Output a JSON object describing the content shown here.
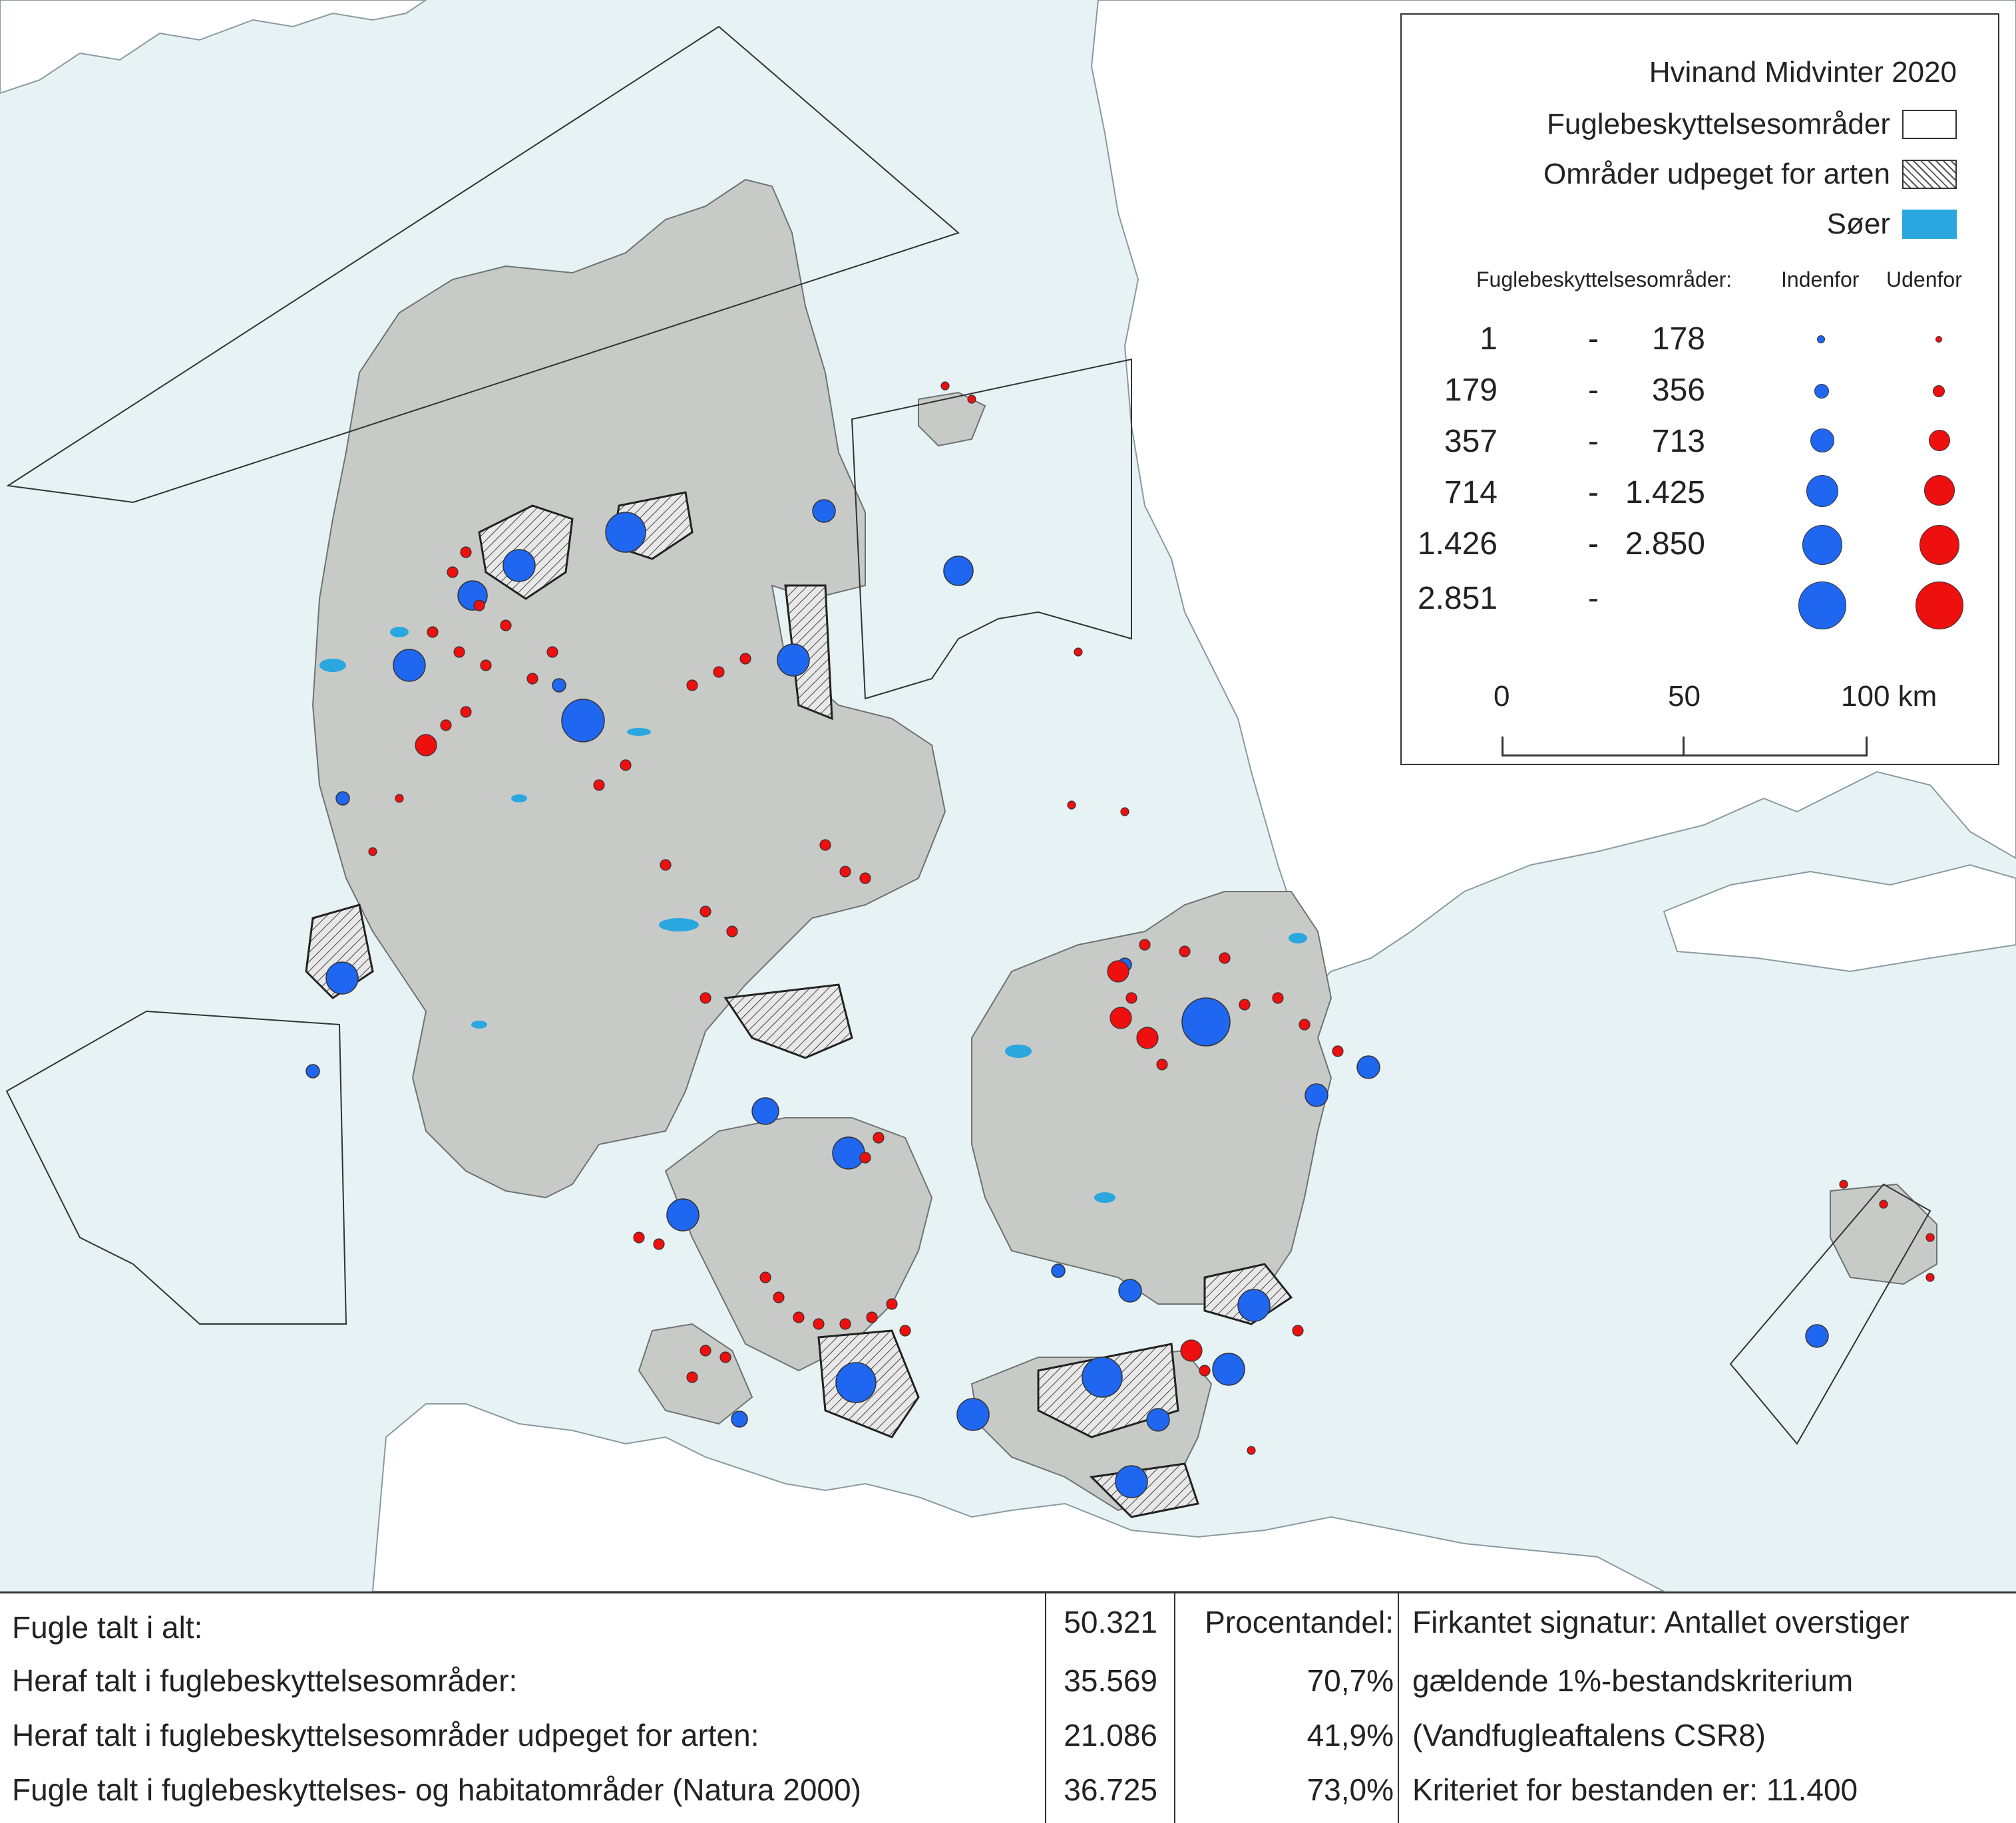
{
  "legend": {
    "title": "Hvinand Midvinter 2020",
    "protected_areas": "Fuglebeskyttelsesområder",
    "designated_areas": "Områder udpeget for arten",
    "lakes": "Søer",
    "header_label": "Fuglebeskyttelsesområder:",
    "inside_label": "Indenfor",
    "outside_label": "Udenfor",
    "classes": [
      {
        "from": "1",
        "dash": "-",
        "to": "178"
      },
      {
        "from": "179",
        "dash": "-",
        "to": "356"
      },
      {
        "from": "357",
        "dash": "-",
        "to": "713"
      },
      {
        "from": "714",
        "dash": "-",
        "to": "1.425"
      },
      {
        "from": "1.426",
        "dash": "-",
        "to": "2.850"
      },
      {
        "from": "2.851",
        "dash": "-",
        "to": ""
      }
    ],
    "scale": {
      "l0": "0",
      "l1": "50",
      "l2": "100 km"
    },
    "colors": {
      "inside": "#1f66f0",
      "outside": "#ee0f0f",
      "lake": "#2aa7de",
      "land": "#c8cac8",
      "sea": "#e6f2f3"
    }
  },
  "stats": {
    "row1": {
      "label": "Fugle talt i alt:",
      "value": "50.321",
      "pct": "Procentandel:"
    },
    "row2": {
      "label": "Heraf talt i fuglebeskyttelsesområder:",
      "value": "35.569",
      "pct": "70,7%"
    },
    "row3": {
      "label": "Heraf talt i fuglebeskyttelsesområder udpeget for arten:",
      "value": "21.086",
      "pct": "41,9%"
    },
    "row4": {
      "label": "Fugle talt i fuglebeskyttelses- og habitatområder (Natura 2000)",
      "value": "36.725",
      "pct": "73,0%"
    },
    "note": [
      "Firkantet signatur: Antallet overstiger",
      "gældende 1%-bestandskriterium",
      "(Vandfugleaftalens CSR8)",
      "Kriteriet for bestanden er: 11.400"
    ]
  }
}
